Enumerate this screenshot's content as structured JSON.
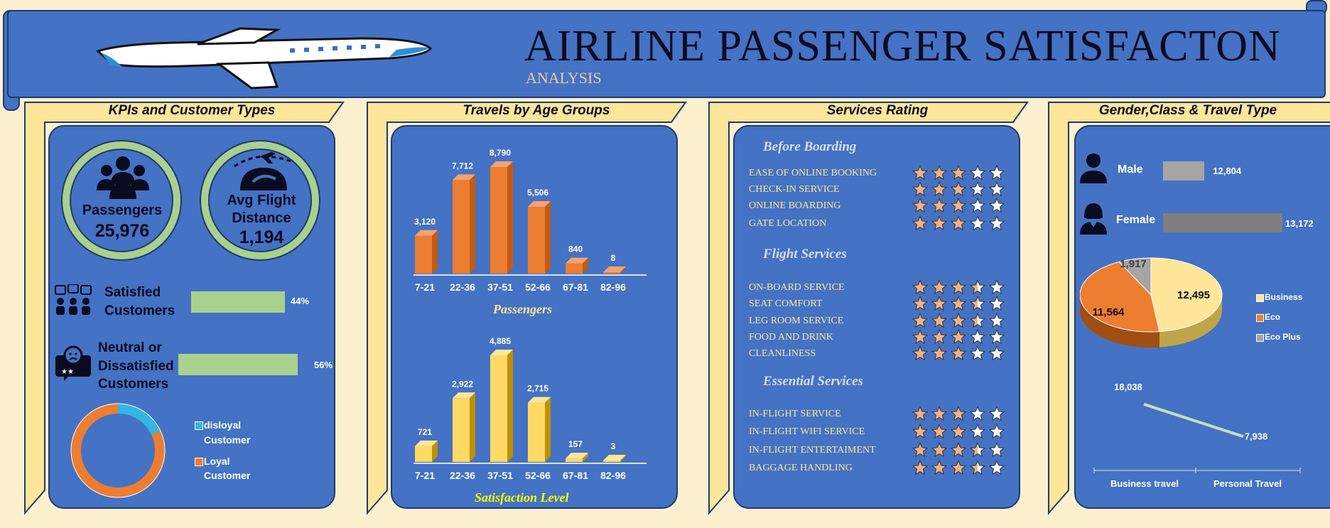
{
  "header": {
    "title": "AIRLINE PASSENGER SATISFACTON",
    "subtitle": "ANALYSIS",
    "logo_icon": "airplane-icon"
  },
  "colors": {
    "background": "#fdf0cf",
    "panel": "#4472c4",
    "tab": "#fde599",
    "orange": "#ed7d31",
    "yellow": "#ffd966",
    "green": "#a9d18e",
    "gray": "#a5a5a5"
  },
  "kpi_panel": {
    "title": "KPIs and Customer Types",
    "passengers_label": "Passengers",
    "passengers_value": "25,976",
    "distance_label_1": "Avg Flight",
    "distance_label_2": "Distance",
    "distance_value": "1,194",
    "satisfied_label_1": "Satisfied",
    "satisfied_label_2": "Customers",
    "satisfied_pct": "44%",
    "neutral_label_1": "Neutral or",
    "neutral_label_2": "Dissatisfied",
    "neutral_label_3": "Customers",
    "neutral_pct": "56%",
    "legend_disloyal_1": "disloyal",
    "legend_disloyal_2": "Customer",
    "legend_loyal_1": "Loyal",
    "legend_loyal_2": "Customer"
  },
  "age_panel": {
    "title": "Travels by Age Groups",
    "passengers_caption": "Passengers",
    "satisfaction_caption": "Satisfaction Level"
  },
  "services_panel": {
    "title": "Services Rating",
    "groups": [
      {
        "heading": "Before Boarding",
        "items": [
          {
            "label": "EASE OF ONLINE BOOKING",
            "stars": 3
          },
          {
            "label": "CHECK-IN SERVICE",
            "stars": 3
          },
          {
            "label": "ONLINE BOARDING",
            "stars": 3
          },
          {
            "label": "GATE LOCATION",
            "stars": 3
          }
        ]
      },
      {
        "heading": "Flight Services",
        "items": [
          {
            "label": "ON-BOARD SERVICE",
            "stars": 3.5
          },
          {
            "label": "SEAT COMFORT",
            "stars": 3.5
          },
          {
            "label": "LEG ROOM SERVICE",
            "stars": 3.5
          },
          {
            "label": "FOOD AND DRINK",
            "stars": 3
          },
          {
            "label": "CLEANLINESS",
            "stars": 3
          }
        ]
      },
      {
        "heading": "Essential Services",
        "items": [
          {
            "label": "IN-FLIGHT SERVICE",
            "stars": 3
          },
          {
            "label": "IN-FLIGHT WIFI SERVICE",
            "stars": 3
          },
          {
            "label": "IN-FLIGHT ENTERTAIMENT",
            "stars": 3.5
          },
          {
            "label": "BAGGAGE HANDLING",
            "stars": 3.5
          }
        ]
      }
    ]
  },
  "gender_panel": {
    "title": "Gender,Class & Travel Type",
    "male_label": "Male",
    "female_label": "Female",
    "legend_business": "Business",
    "legend_eco": "Eco",
    "legend_ecoplus": "Eco Plus"
  },
  "chart_data": [
    {
      "type": "pie",
      "id": "customer-type-donut",
      "categories": [
        "disloyal Customer",
        "Loyal Customer"
      ],
      "values": [
        18,
        82
      ],
      "colors": [
        "#33b5e5",
        "#ed7d31"
      ]
    },
    {
      "type": "bar",
      "id": "satisfaction-bars",
      "categories": [
        "Satisfied Customers",
        "Neutral or Dissatisfied Customers"
      ],
      "values": [
        44,
        56
      ],
      "labels": [
        "44%",
        "56%"
      ]
    },
    {
      "type": "bar",
      "id": "age-passengers",
      "categories": [
        "7-21",
        "22-36",
        "37-51",
        "52-66",
        "67-81",
        "82-96"
      ],
      "values": [
        3120,
        7712,
        8790,
        5506,
        840,
        8
      ],
      "labels": [
        "3,120",
        "7,712",
        "8,790",
        "5,506",
        "840",
        "8"
      ],
      "xlabel": "Passengers"
    },
    {
      "type": "bar",
      "id": "age-satisfaction",
      "categories": [
        "7-21",
        "22-36",
        "37-51",
        "52-66",
        "67-81",
        "82-96"
      ],
      "values": [
        721,
        2922,
        4885,
        2715,
        157,
        3
      ],
      "labels": [
        "721",
        "2,922",
        "4,885",
        "2,715",
        "157",
        "3"
      ],
      "xlabel": "Satisfaction Level"
    },
    {
      "type": "bar",
      "id": "gender-bars",
      "categories": [
        "Male",
        "Female"
      ],
      "values": [
        12804,
        13172
      ],
      "labels": [
        "12,804",
        "13,172"
      ]
    },
    {
      "type": "pie",
      "id": "class-pie",
      "categories": [
        "Business",
        "Eco",
        "Eco Plus"
      ],
      "values": [
        12495,
        11564,
        1917
      ],
      "labels": [
        "12,495",
        "11,564",
        "1,917"
      ],
      "colors": [
        "#ffe699",
        "#ed7d31",
        "#a5a5a5"
      ]
    },
    {
      "type": "line",
      "id": "travel-type-line",
      "categories": [
        "Business travel",
        "Personal Travel"
      ],
      "values": [
        18038,
        7938
      ],
      "labels": [
        "18,038",
        "7,938"
      ]
    }
  ]
}
